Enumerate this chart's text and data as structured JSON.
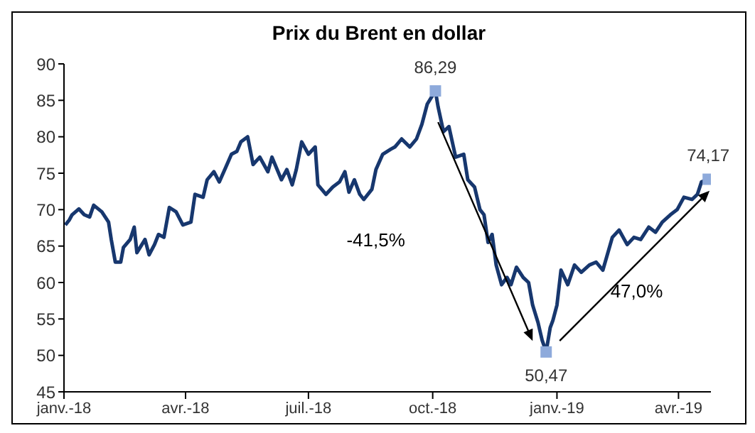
{
  "chart_data": {
    "type": "line",
    "title": "Prix du Brent en dollar",
    "legend": false,
    "annotations": [
      "-41,5%",
      "47,0%"
    ],
    "xlim": [
      "2018-01-01",
      "2019-04-25"
    ],
    "xticks": [
      {
        "value": "2018-01-01",
        "label": "janv.-18"
      },
      {
        "value": "2018-04-01",
        "label": "avr.-18"
      },
      {
        "value": "2018-07-01",
        "label": "juil.-18"
      },
      {
        "value": "2018-10-01",
        "label": "oct.-18"
      },
      {
        "value": "2019-01-01",
        "label": "janv.-19"
      },
      {
        "value": "2019-04-01",
        "label": "avr.-19"
      }
    ],
    "ylim": [
      45,
      90
    ],
    "yticks": [
      45,
      50,
      55,
      60,
      65,
      70,
      75,
      80,
      85,
      90
    ],
    "series": [
      {
        "color": "#17376e",
        "marker": "none",
        "x": [
          "2018-01-02",
          "2018-01-05",
          "2018-01-07",
          "2018-01-12",
          "2018-01-16",
          "2018-01-20",
          "2018-01-23",
          "2018-01-29",
          "2018-02-03",
          "2018-02-05",
          "2018-02-08",
          "2018-02-12",
          "2018-02-14",
          "2018-02-19",
          "2018-02-22",
          "2018-02-24",
          "2018-03-02",
          "2018-03-05",
          "2018-03-09",
          "2018-03-12",
          "2018-03-16",
          "2018-03-20",
          "2018-03-25",
          "2018-03-30",
          "2018-04-05",
          "2018-04-08",
          "2018-04-14",
          "2018-04-17",
          "2018-04-22",
          "2018-04-26",
          "2018-05-01",
          "2018-05-05",
          "2018-05-09",
          "2018-05-12",
          "2018-05-17",
          "2018-05-21",
          "2018-05-26",
          "2018-06-01",
          "2018-06-04",
          "2018-06-11",
          "2018-06-15",
          "2018-06-19",
          "2018-06-22",
          "2018-06-26",
          "2018-07-01",
          "2018-07-06",
          "2018-07-08",
          "2018-07-14",
          "2018-07-19",
          "2018-07-24",
          "2018-07-28",
          "2018-07-31",
          "2018-08-04",
          "2018-08-08",
          "2018-08-11",
          "2018-08-17",
          "2018-08-20",
          "2018-08-25",
          "2018-08-31",
          "2018-09-03",
          "2018-09-08",
          "2018-09-14",
          "2018-09-19",
          "2018-09-23",
          "2018-09-27",
          "2018-10-03",
          "2018-10-05",
          "2018-10-09",
          "2018-10-13",
          "2018-10-18",
          "2018-10-24",
          "2018-10-27",
          "2018-11-01",
          "2018-11-05",
          "2018-11-08",
          "2018-11-11",
          "2018-11-14",
          "2018-11-17",
          "2018-11-21",
          "2018-11-25",
          "2018-11-28",
          "2018-12-02",
          "2018-12-07",
          "2018-12-11",
          "2018-12-14",
          "2018-12-18",
          "2018-12-21",
          "2018-12-24",
          "2018-12-27",
          "2018-12-29",
          "2019-01-01",
          "2019-01-04",
          "2019-01-09",
          "2019-01-14",
          "2019-01-19",
          "2019-01-25",
          "2019-01-30",
          "2019-02-04",
          "2019-02-11",
          "2019-02-16",
          "2019-02-22",
          "2019-02-27",
          "2019-03-04",
          "2019-03-10",
          "2019-03-15",
          "2019-03-20",
          "2019-03-26",
          "2019-03-31",
          "2019-04-05",
          "2019-04-11",
          "2019-04-15",
          "2019-04-18",
          "2019-04-23"
        ],
        "values": [
          67.9,
          68.6,
          69.3,
          70.1,
          69.3,
          69,
          70.6,
          69.7,
          68.3,
          65.9,
          62.8,
          62.8,
          64.8,
          65.9,
          67.6,
          64.1,
          65.9,
          63.8,
          65.2,
          66.6,
          66.2,
          70.3,
          69.7,
          67.9,
          68.3,
          72.1,
          71.7,
          74.1,
          75.2,
          73.8,
          75.9,
          77.6,
          78,
          79.3,
          80,
          76.2,
          77.2,
          75.2,
          77.2,
          74.1,
          75.5,
          73.4,
          75.5,
          79.3,
          77.6,
          78.6,
          73.4,
          72.1,
          73.1,
          73.8,
          75.2,
          72.4,
          74.1,
          72.1,
          71.4,
          72.8,
          75.5,
          77.6,
          78.3,
          78.6,
          79.7,
          78.6,
          79.7,
          81.7,
          84.5,
          86.3,
          84.1,
          80.7,
          81.4,
          77.2,
          77.6,
          74.1,
          73.1,
          70,
          69.3,
          65.5,
          66.6,
          62.4,
          59.7,
          60.7,
          59.7,
          62.1,
          60.7,
          60,
          56.9,
          54.5,
          52.1,
          50.5,
          53.8,
          54.8,
          56.9,
          61.7,
          59.7,
          62.4,
          61.4,
          62.4,
          62.8,
          61.7,
          66.2,
          67.2,
          65.2,
          66.2,
          65.9,
          67.6,
          66.9,
          68.3,
          69.3,
          70,
          71.7,
          71.4,
          72.1,
          73.8,
          74.2
        ]
      },
      {
        "type": "scatter",
        "color": "#8eaadb",
        "marker": "square",
        "x": [
          "2018-10-03",
          "2018-12-24",
          "2019-04-23"
        ],
        "values": [
          86.29,
          50.47,
          74.17
        ],
        "value_labels": [
          "86,29",
          "50,47",
          "74,17"
        ]
      }
    ]
  }
}
